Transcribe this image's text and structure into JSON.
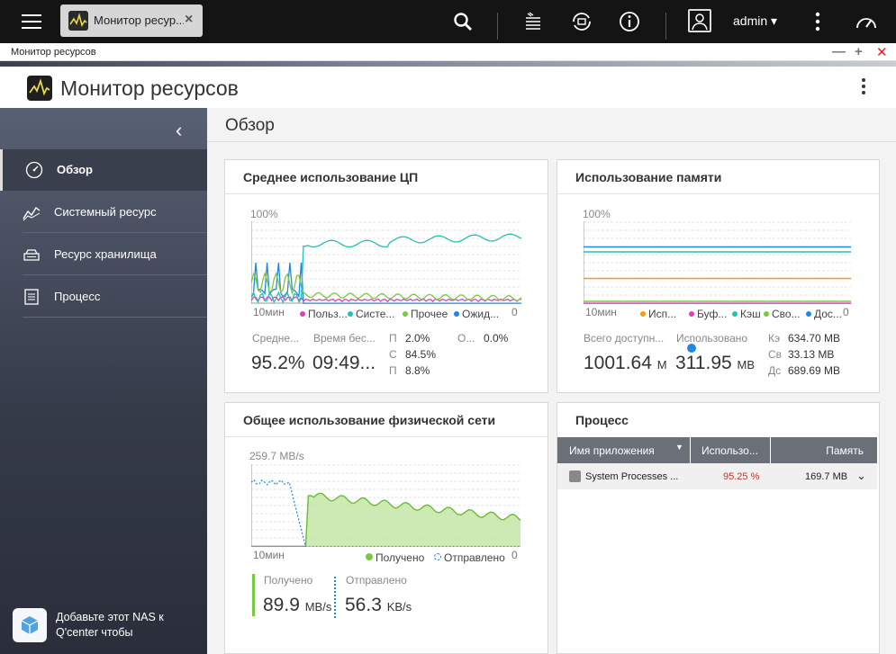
{
  "topbar": {
    "app_tab_label": "Монитор ресур...",
    "username": "admin ▾"
  },
  "window": {
    "title": "Монитор ресурсов",
    "controls": [
      "—",
      "+",
      "✕"
    ]
  },
  "header": {
    "title": "Монитор ресурсов"
  },
  "sidebar": {
    "items": [
      {
        "label": "Обзор",
        "icon": "gauge-icon",
        "active": true
      },
      {
        "label": "Системный ресурс",
        "icon": "line-chart-icon"
      },
      {
        "label": "Ресурс хранилища",
        "icon": "storage-icon"
      },
      {
        "label": "Процесс",
        "icon": "process-list-icon"
      }
    ],
    "promo": "Добавьте этот NAS к Q'center чтобы"
  },
  "main": {
    "page_title": "Обзор"
  },
  "cpu": {
    "title": "Среднее использование ЦП",
    "y_max": "100%",
    "x_left": "10мин",
    "x_right": "0",
    "legend": [
      {
        "label": "Польз...",
        "color": "#e040c0"
      },
      {
        "label": "Систе...",
        "color": "#26c0b0"
      },
      {
        "label": "Прочее",
        "color": "#7ac943"
      },
      {
        "label": "Ожид...",
        "color": "#1e88e5"
      }
    ],
    "stat_label_1": "Средне...",
    "stat_label_2": "Время бес...",
    "avg": "95.2%",
    "idle": "09:49...",
    "p1_label": "П",
    "p1_value": "2.0%",
    "c_label": "С",
    "c_value": "84.5%",
    "p2_label": "П",
    "p2_value": "8.8%",
    "o_label": "О...",
    "o_value": "0.0%"
  },
  "memory": {
    "title": "Использование памяти",
    "y_max": "100%",
    "x_left": "10мин",
    "x_right": "0",
    "legend": [
      {
        "label": "Исп...",
        "color": "#f39c12"
      },
      {
        "label": "Буф...",
        "color": "#e040c0"
      },
      {
        "label": "Кэш",
        "color": "#26c0b0"
      },
      {
        "label": "Сво...",
        "color": "#7ac943"
      },
      {
        "label": "Дос...",
        "color": "#1e88e5"
      }
    ],
    "total_label": "Всего доступн...",
    "used_label": "Использовано",
    "total_value": "1001.64",
    "total_unit": "М",
    "used_value": "311.95",
    "used_unit": "МВ",
    "k_label": "Кэ",
    "k_value": "634.70 MB",
    "s_label": "Св",
    "s_value": "33.13 MB",
    "d_label": "Дс",
    "d_value": "689.69 MB"
  },
  "network": {
    "title": "Общее использование физической сети",
    "y_max": "259.7 MB/s",
    "x_left": "10мин",
    "x_right": "0",
    "legend_recv": "Получено",
    "legend_sent": "Отправлено",
    "recv_label": "Получено",
    "sent_label": "Отправлено",
    "recv_value": "89.9",
    "recv_unit": "MB/s",
    "sent_value": "56.3",
    "sent_unit": "KB/s",
    "colors": {
      "recv": "#7ac943",
      "sent": "#1e88e5"
    }
  },
  "process": {
    "title": "Процесс",
    "columns": [
      "Имя приложения",
      "Использо...",
      "Память"
    ],
    "rows": [
      {
        "name": "System Processes ...",
        "cpu": "95.25 %",
        "memory": "169.7 MB"
      }
    ]
  }
}
